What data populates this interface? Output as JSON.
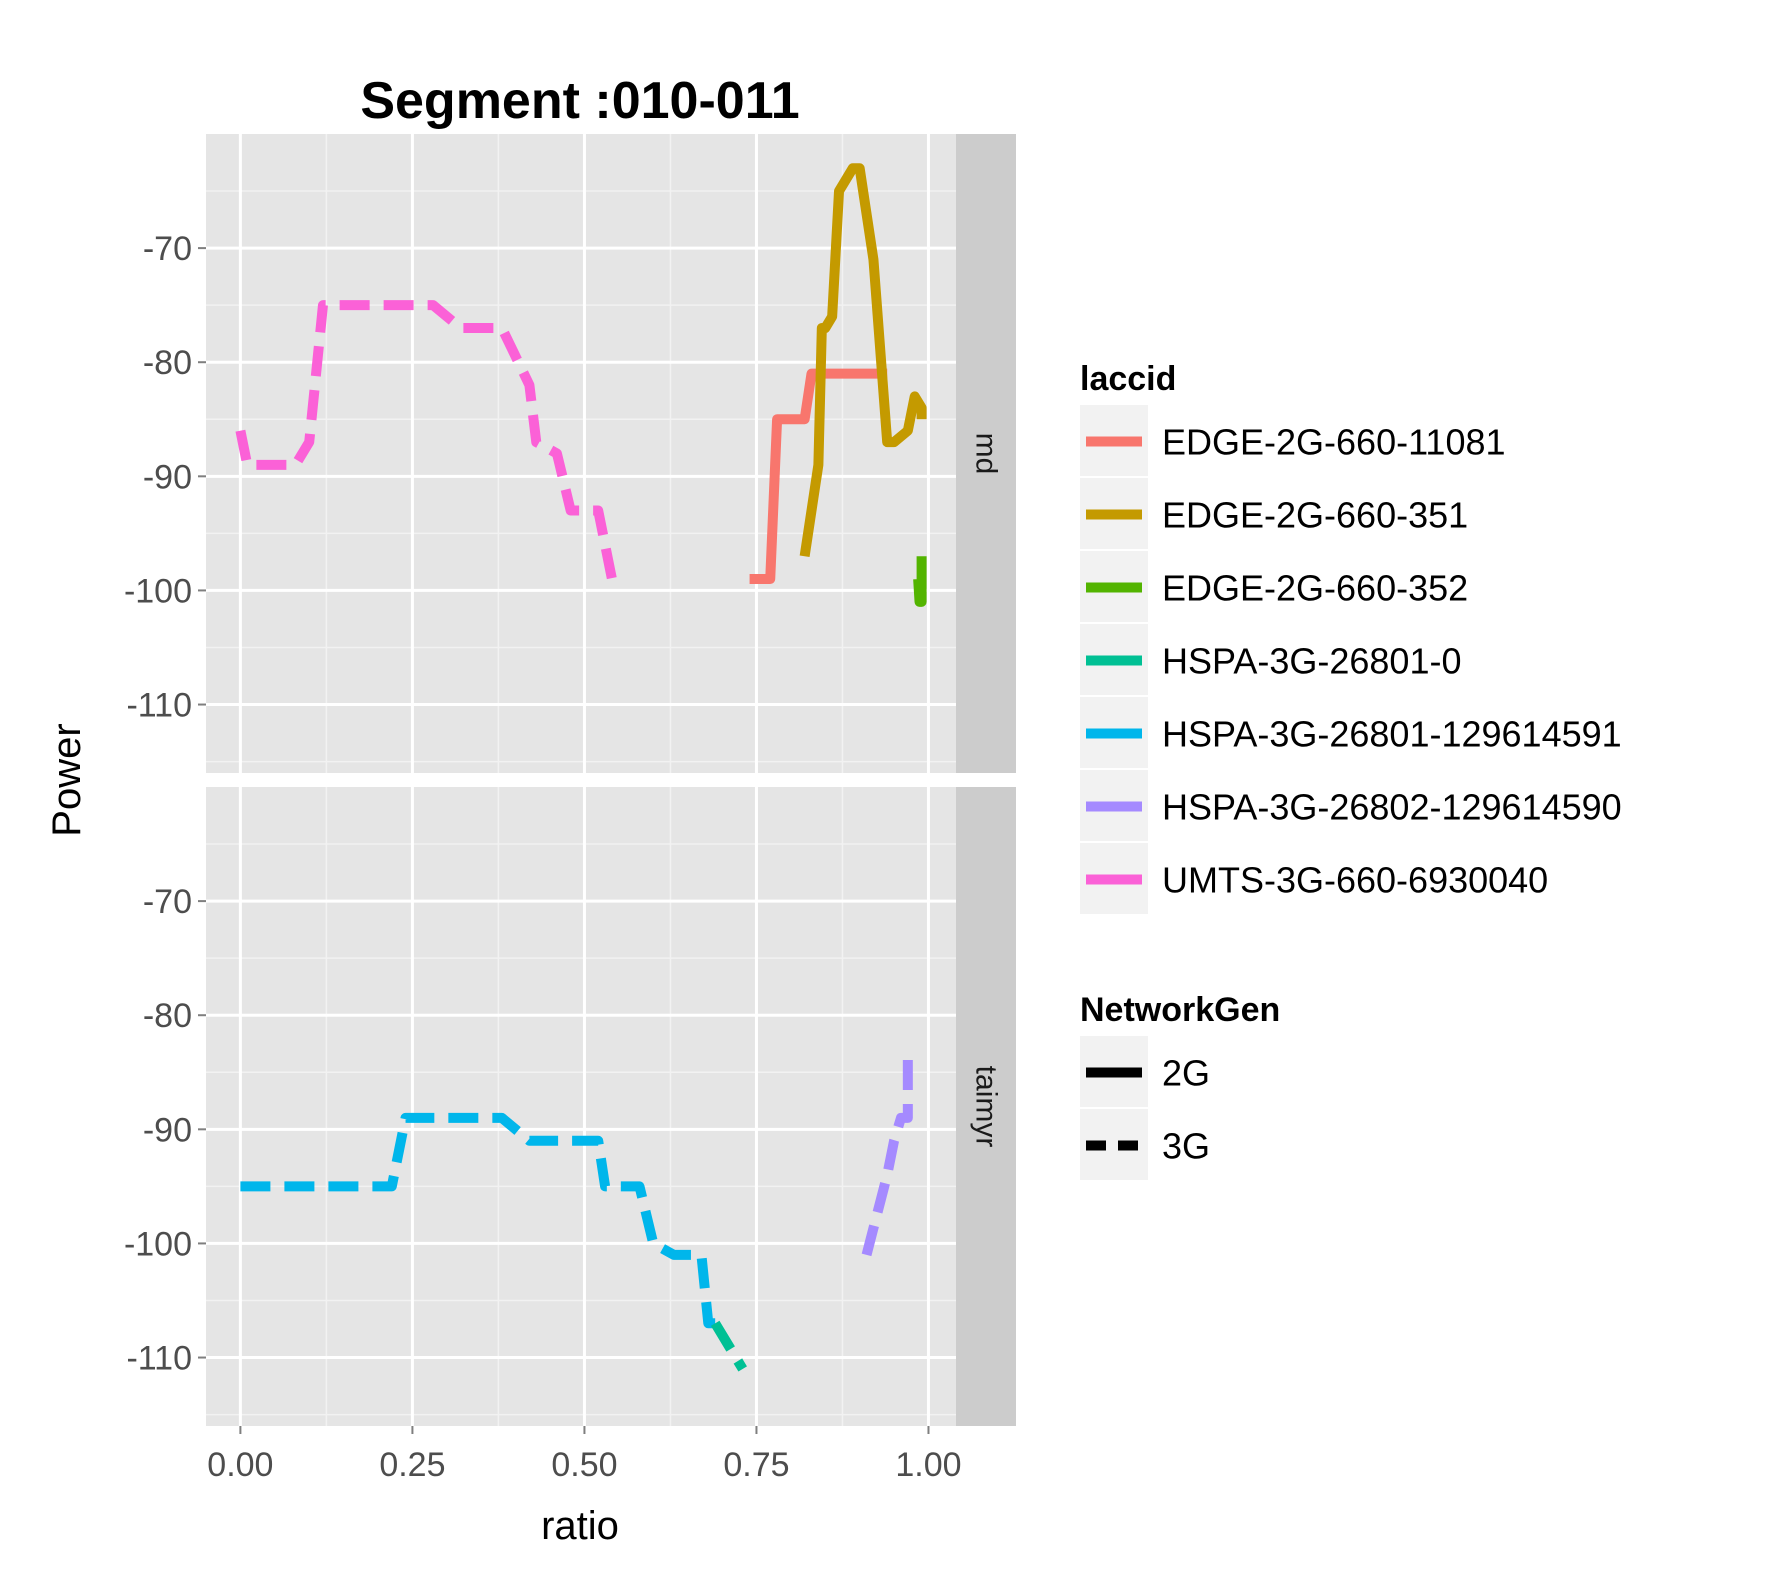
{
  "chart_data": {
    "type": "line",
    "title": "Segment :010-011",
    "xlabel": "ratio",
    "ylabel": "Power",
    "xlim": [
      -0.05,
      1.04
    ],
    "ylim": [
      -116,
      -60
    ],
    "x_ticks": [
      "0.00",
      "0.25",
      "0.50",
      "0.75",
      "1.00"
    ],
    "y_ticks": [
      "-70",
      "-80",
      "-90",
      "-100",
      "-110"
    ],
    "grid": true,
    "facets": [
      "md",
      "taimyr"
    ],
    "legend_position": "right",
    "legends": {
      "laccid": {
        "title": "laccid",
        "entries": [
          {
            "label": "EDGE-2G-660-11081",
            "color": "#F8766D"
          },
          {
            "label": "EDGE-2G-660-351",
            "color": "#C49A00"
          },
          {
            "label": "EDGE-2G-660-352",
            "color": "#53B400"
          },
          {
            "label": "HSPA-3G-26801-0",
            "color": "#00C094"
          },
          {
            "label": "HSPA-3G-26801-129614591",
            "color": "#00B6EB"
          },
          {
            "label": "HSPA-3G-26802-129614590",
            "color": "#A58AFF"
          },
          {
            "label": "UMTS-3G-660-6930040",
            "color": "#FB61D7"
          }
        ]
      },
      "networkgen": {
        "title": "NetworkGen",
        "entries": [
          {
            "label": "2G",
            "linetype": "solid"
          },
          {
            "label": "3G",
            "linetype": "dashed"
          }
        ]
      }
    },
    "series": [
      {
        "facet": "md",
        "name": "UMTS-3G-660-6930040",
        "color": "#FB61D7",
        "linetype": "dashed",
        "x": [
          0.0,
          0.01,
          0.04,
          0.08,
          0.1,
          0.12,
          0.2,
          0.26,
          0.28,
          0.32,
          0.36,
          0.38,
          0.42,
          0.43,
          0.46,
          0.48,
          0.5,
          0.52,
          0.54,
          0.55
        ],
        "y": [
          -86,
          -89,
          -89,
          -89,
          -87,
          -75,
          -75,
          -75,
          -75,
          -77,
          -77,
          -77,
          -82,
          -87,
          -88,
          -93,
          -93,
          -93,
          -99,
          -99
        ]
      },
      {
        "facet": "md",
        "name": "EDGE-2G-660-11081",
        "color": "#F8766D",
        "linetype": "solid",
        "x": [
          0.74,
          0.77,
          0.78,
          0.8,
          0.81,
          0.82,
          0.83,
          0.87,
          0.9,
          0.93,
          0.94
        ],
        "y": [
          -99,
          -99,
          -85,
          -85,
          -85,
          -85,
          -81,
          -81,
          -81,
          -81,
          -81
        ]
      },
      {
        "facet": "md",
        "name": "EDGE-2G-660-351",
        "color": "#C49A00",
        "linetype": "solid",
        "x": [
          0.82,
          0.84,
          0.845,
          0.85,
          0.86,
          0.87,
          0.89,
          0.9,
          0.92,
          0.94,
          0.95,
          0.97,
          0.98,
          0.99,
          0.99
        ],
        "y": [
          -97,
          -89,
          -77,
          -77,
          -76,
          -65,
          -63,
          -63,
          -71,
          -87,
          -87,
          -86,
          -83,
          -84,
          -85
        ]
      },
      {
        "facet": "md",
        "name": "EDGE-2G-660-352",
        "color": "#53B400",
        "linetype": "solid",
        "x": [
          0.985,
          0.987,
          0.99,
          0.99
        ],
        "y": [
          -99,
          -101,
          -101,
          -97
        ]
      },
      {
        "facet": "taimyr",
        "name": "HSPA-3G-26801-129614591",
        "color": "#00B6EB",
        "linetype": "dashed",
        "x": [
          0.0,
          0.18,
          0.22,
          0.24,
          0.37,
          0.38,
          0.42,
          0.51,
          0.52,
          0.53,
          0.55,
          0.58,
          0.6,
          0.63,
          0.67,
          0.68,
          0.69
        ],
        "y": [
          -95,
          -95,
          -95,
          -89,
          -89,
          -89,
          -91,
          -91,
          -91,
          -95,
          -95,
          -95,
          -100,
          -101,
          -101,
          -107,
          -107
        ]
      },
      {
        "facet": "taimyr",
        "name": "HSPA-3G-26801-0",
        "color": "#00C094",
        "linetype": "dashed",
        "x": [
          0.69,
          0.73
        ],
        "y": [
          -107,
          -111
        ]
      },
      {
        "facet": "taimyr",
        "name": "HSPA-3G-26802-129614590",
        "color": "#A58AFF",
        "linetype": "dashed",
        "x": [
          0.91,
          0.94,
          0.95,
          0.96,
          0.97,
          0.97
        ],
        "y": [
          -101,
          -94,
          -91,
          -89,
          -89,
          -83
        ]
      }
    ]
  }
}
